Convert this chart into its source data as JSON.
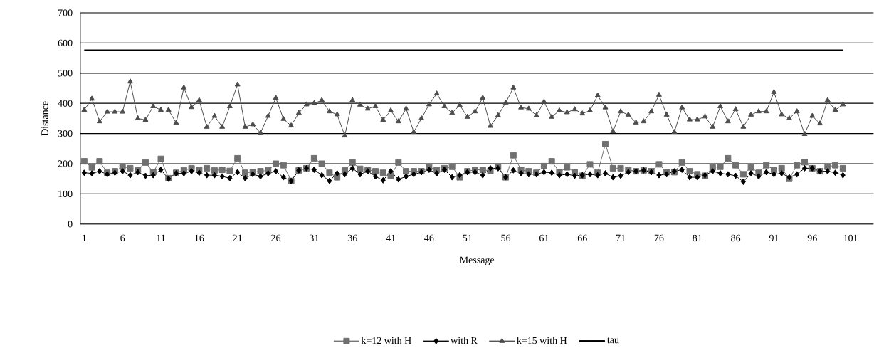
{
  "chart_data": {
    "type": "line",
    "xlabel": "Message",
    "ylabel": "Distance",
    "x": [
      1,
      2,
      3,
      4,
      5,
      6,
      7,
      8,
      9,
      10,
      11,
      12,
      13,
      14,
      15,
      16,
      17,
      18,
      19,
      20,
      21,
      22,
      23,
      24,
      25,
      26,
      27,
      28,
      29,
      30,
      31,
      32,
      33,
      34,
      35,
      36,
      37,
      38,
      39,
      40,
      41,
      42,
      43,
      44,
      45,
      46,
      47,
      48,
      49,
      50,
      51,
      52,
      53,
      54,
      55,
      56,
      57,
      58,
      59,
      60,
      61,
      62,
      63,
      64,
      65,
      66,
      67,
      68,
      69,
      70,
      71,
      72,
      73,
      74,
      75,
      76,
      77,
      78,
      79,
      80,
      81,
      82,
      83,
      84,
      85,
      86,
      87,
      88,
      89,
      90,
      91,
      92,
      93,
      94,
      95,
      96,
      97,
      98,
      99,
      100
    ],
    "xlim": [
      0.5,
      104
    ],
    "xticks": [
      1,
      6,
      11,
      16,
      21,
      26,
      31,
      36,
      41,
      46,
      51,
      56,
      61,
      66,
      71,
      76,
      81,
      86,
      91,
      96,
      101
    ],
    "ylim": [
      0,
      700
    ],
    "yticks": [
      0,
      100,
      200,
      300,
      400,
      500,
      600,
      700
    ],
    "grid": "y",
    "legend": "bottom",
    "line_style": "solid",
    "series": [
      {
        "name": "k=12 with H",
        "color": "#707070",
        "marker": "square",
        "values": [
          208,
          188,
          208,
          170,
          175,
          190,
          185,
          180,
          204,
          172,
          216,
          152,
          170,
          178,
          185,
          180,
          185,
          178,
          180,
          176,
          218,
          170,
          172,
          175,
          178,
          200,
          195,
          143,
          178,
          185,
          218,
          200,
          170,
          155,
          178,
          204,
          183,
          180,
          175,
          170,
          160,
          204,
          175,
          175,
          175,
          188,
          180,
          185,
          190,
          155,
          175,
          180,
          180,
          176,
          190,
          155,
          228,
          180,
          175,
          170,
          192,
          208,
          172,
          188,
          172,
          160,
          198,
          170,
          265,
          185,
          185,
          180,
          175,
          178,
          175,
          198,
          172,
          172,
          204,
          175,
          165,
          160,
          188,
          190,
          218,
          195,
          165,
          188,
          170,
          195,
          180,
          185,
          150,
          195,
          205,
          185,
          175,
          190,
          195,
          185
        ]
      },
      {
        "name": "with R",
        "color": "#000000",
        "marker": "diamond",
        "values": [
          170,
          168,
          175,
          165,
          170,
          175,
          162,
          172,
          160,
          162,
          180,
          150,
          168,
          168,
          175,
          170,
          162,
          162,
          158,
          152,
          172,
          152,
          165,
          158,
          168,
          175,
          155,
          143,
          178,
          185,
          180,
          162,
          143,
          168,
          165,
          185,
          165,
          175,
          158,
          145,
          175,
          148,
          158,
          165,
          172,
          180,
          168,
          180,
          155,
          162,
          172,
          172,
          162,
          185,
          185,
          155,
          178,
          168,
          165,
          165,
          172,
          170,
          162,
          165,
          160,
          162,
          165,
          162,
          168,
          155,
          160,
          172,
          175,
          178,
          172,
          162,
          165,
          175,
          180,
          155,
          155,
          162,
          175,
          168,
          165,
          160,
          140,
          168,
          158,
          172,
          165,
          168,
          155,
          165,
          185,
          185,
          175,
          175,
          170,
          162
        ]
      },
      {
        "name": "k=15 with H",
        "color": "#4d4d4d",
        "marker": "triangle",
        "values": [
          378,
          415,
          340,
          372,
          372,
          372,
          472,
          350,
          345,
          390,
          378,
          378,
          335,
          452,
          387,
          410,
          322,
          358,
          322,
          390,
          462,
          322,
          330,
          302,
          358,
          418,
          348,
          326,
          368,
          396,
          400,
          410,
          373,
          363,
          293,
          410,
          395,
          382,
          390,
          345,
          376,
          340,
          382,
          305,
          350,
          396,
          432,
          390,
          368,
          394,
          355,
          373,
          418,
          325,
          360,
          402,
          452,
          386,
          382,
          360,
          405,
          355,
          376,
          370,
          380,
          366,
          376,
          426,
          386,
          307,
          373,
          362,
          336,
          340,
          373,
          428,
          362,
          305,
          386,
          346,
          346,
          356,
          322,
          390,
          340,
          380,
          322,
          362,
          373,
          373,
          437,
          363,
          350,
          373,
          298,
          358,
          333,
          410,
          378,
          396
        ]
      },
      {
        "name": "tau",
        "color": "#000000",
        "marker": "none",
        "x": [
          1,
          100
        ],
        "values": [
          576,
          576
        ]
      }
    ]
  }
}
